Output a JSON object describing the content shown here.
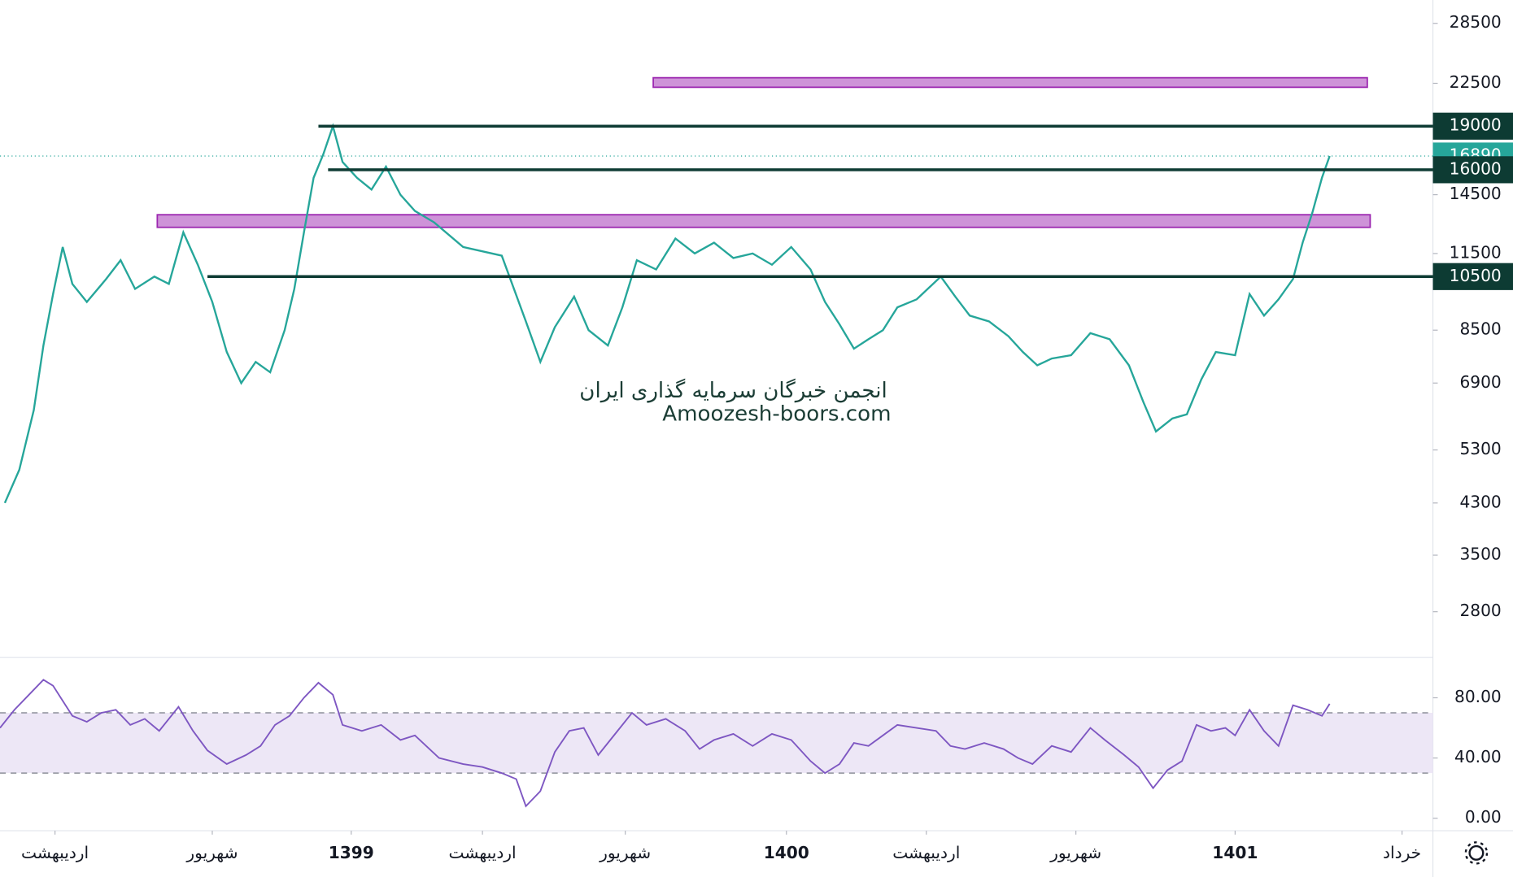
{
  "chart_data": [
    {
      "type": "line",
      "log_scale": true,
      "color": "#26a69a",
      "annotations": [
        "انجمن خبرگان سرمایه گذاری ایران",
        "Amoozesh-boors.com"
      ],
      "x": [
        5,
        20,
        35,
        45,
        55,
        65,
        75,
        90,
        110,
        125,
        140,
        160,
        175,
        190,
        205,
        220,
        235,
        250,
        265,
        280,
        295,
        305,
        315,
        325,
        335,
        345,
        355,
        370,
        385,
        400,
        415,
        430,
        450,
        480,
        520,
        545,
        560,
        575,
        595,
        610,
        630,
        645,
        660,
        680,
        700,
        720,
        740,
        760,
        780,
        800,
        820,
        840,
        855,
        870,
        885,
        900,
        915,
        930,
        950,
        975,
        990,
        1005,
        1025,
        1045,
        1060,
        1075,
        1090,
        1110,
        1130,
        1150,
        1170,
        1185,
        1198,
        1215,
        1230,
        1245,
        1260,
        1280,
        1295,
        1310,
        1325,
        1340,
        1350,
        1360,
        1370,
        1378
      ],
      "values": [
        4300,
        4900,
        6200,
        8000,
        9800,
        11800,
        10200,
        9500,
        10400,
        11200,
        10000,
        10500,
        10200,
        12500,
        11000,
        9500,
        7800,
        6900,
        7500,
        7200,
        8500,
        10000,
        12500,
        15500,
        17000,
        19000,
        16500,
        15500,
        14800,
        16200,
        14500,
        13600,
        13000,
        11800,
        11400,
        8800,
        7500,
        8600,
        9700,
        8500,
        8000,
        9300,
        11200,
        10800,
        12200,
        11500,
        12000,
        11300,
        11500,
        11000,
        11800,
        10800,
        9500,
        8700,
        7900,
        8200,
        8500,
        9300,
        9600,
        10500,
        9700,
        9000,
        8800,
        8300,
        7800,
        7400,
        7600,
        7700,
        8400,
        8200,
        7400,
        6400,
        5700,
        6000,
        6100,
        7000,
        7800,
        7700,
        9800,
        9000,
        9600,
        10400,
        12000,
        13500,
        15500,
        16890
      ],
      "xlim": [
        0,
        1485
      ],
      "xticks": [
        {
          "value": 57,
          "label": "اردیبهشت"
        },
        {
          "value": 220,
          "label": "شهریور"
        },
        {
          "value": 364,
          "label": "1399"
        },
        {
          "value": 500,
          "label": "اردیبهشت"
        },
        {
          "value": 648,
          "label": "شهریور"
        },
        {
          "value": 815,
          "label": "1400"
        },
        {
          "value": 960,
          "label": "اردیبهشت"
        },
        {
          "value": 1115,
          "label": "شهریور"
        },
        {
          "value": 1280,
          "label": "1401"
        },
        {
          "value": 1453,
          "label": "خرداد"
        }
      ],
      "ylim": [
        2340,
        31250
      ],
      "yticks": [
        28500,
        22500,
        14500,
        11500,
        8500,
        6900,
        5300,
        4300,
        3500,
        2800
      ],
      "levels": [
        {
          "value": 19000,
          "start": 330
        },
        {
          "value": 16000,
          "start": 340
        },
        {
          "value": 10500,
          "start": 215
        }
      ],
      "level_color": "#0d3b33",
      "zones": [
        {
          "low": 22150,
          "high": 23000,
          "start": 677,
          "end": 1417
        },
        {
          "low": 12750,
          "high": 13400,
          "start": 163,
          "end": 1420
        }
      ],
      "zone_color": "#ce93d8",
      "last_price": 16890,
      "last_price_color": "#26a69a"
    },
    {
      "type": "line",
      "color": "#7e57c2",
      "x": [
        0,
        15,
        30,
        45,
        55,
        65,
        75,
        90,
        105,
        120,
        135,
        150,
        165,
        185,
        200,
        215,
        235,
        255,
        270,
        285,
        300,
        315,
        330,
        345,
        355,
        375,
        395,
        415,
        430,
        455,
        480,
        500,
        520,
        535,
        545,
        560,
        575,
        590,
        605,
        620,
        640,
        655,
        670,
        690,
        710,
        725,
        740,
        760,
        780,
        800,
        820,
        840,
        855,
        870,
        885,
        900,
        915,
        930,
        950,
        970,
        985,
        1000,
        1020,
        1040,
        1055,
        1070,
        1090,
        1110,
        1130,
        1145,
        1165,
        1180,
        1195,
        1210,
        1225,
        1240,
        1255,
        1270,
        1280,
        1295,
        1310,
        1325,
        1340,
        1355,
        1370,
        1378
      ],
      "values": [
        60,
        72,
        82,
        92,
        88,
        78,
        68,
        64,
        70,
        72,
        62,
        66,
        58,
        74,
        58,
        45,
        36,
        42,
        48,
        62,
        68,
        80,
        90,
        82,
        62,
        58,
        62,
        52,
        55,
        40,
        36,
        34,
        30,
        26,
        8,
        18,
        44,
        58,
        60,
        42,
        58,
        70,
        62,
        66,
        58,
        46,
        52,
        56,
        48,
        56,
        52,
        38,
        30,
        36,
        50,
        48,
        55,
        62,
        60,
        58,
        48,
        46,
        50,
        46,
        40,
        36,
        48,
        44,
        60,
        52,
        42,
        34,
        20,
        32,
        38,
        62,
        58,
        60,
        55,
        72,
        58,
        48,
        75,
        72,
        68,
        76
      ],
      "ylim": [
        -8.3,
        106.9
      ],
      "yticks": [
        {
          "value": 0,
          "label": "0.00"
        },
        {
          "value": 40,
          "label": "40.00"
        },
        {
          "value": 80,
          "label": "80.00"
        }
      ],
      "bands": [
        30,
        70
      ],
      "band_color": "#ede7f6"
    }
  ]
}
